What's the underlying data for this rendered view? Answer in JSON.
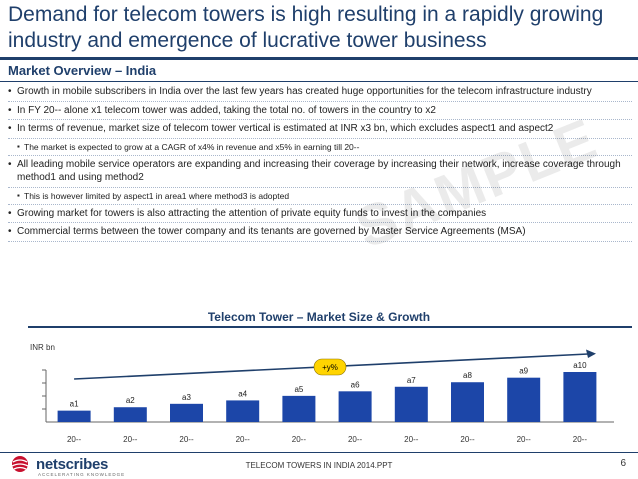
{
  "title": "Demand for telecom towers is high resulting in a rapidly growing industry and emergence of lucrative tower business",
  "section": {
    "heading": "Market Overview – India"
  },
  "bullets": [
    {
      "level": 1,
      "text": "Growth in mobile subscribers in India over the last few years has created huge opportunities for the telecom infrastructure industry"
    },
    {
      "level": 1,
      "text": "In FY 20-- alone x1 telecom tower was added, taking the total no. of towers in the country to x2"
    },
    {
      "level": 1,
      "text": "In terms of revenue, market size of telecom tower vertical is estimated at INR x3 bn, which excludes aspect1 and aspect2"
    },
    {
      "level": 2,
      "text": "The market is expected to grow at a CAGR of x4% in revenue and x5% in earning till 20--"
    },
    {
      "level": 1,
      "text": "All leading mobile service operators are expanding and increasing their coverage by increasing their network, increase coverage through method1 and using method2"
    },
    {
      "level": 2,
      "text": "This is however limited by aspect1 in area1 where method3 is adopted"
    },
    {
      "level": 1,
      "text": "Growing market for towers is also attracting the attention of private equity funds to invest in the companies"
    },
    {
      "level": 1,
      "text": "Commercial terms between the tower company and its tenants are governed by Master Service Agreements (MSA)"
    }
  ],
  "watermark": "SAMPLE",
  "chart_data": {
    "type": "bar",
    "title": "Telecom Tower – Market Size & Growth",
    "ylabel": "INR bn",
    "xlabel": "",
    "categories": [
      "20--",
      "20--",
      "20--",
      "20--",
      "20--",
      "20--",
      "20--",
      "20--",
      "20--",
      "20--"
    ],
    "data_labels": [
      "a1",
      "a2",
      "a3",
      "a4",
      "a5",
      "a6",
      "a7",
      "a8",
      "a9",
      "a10"
    ],
    "values": [
      10,
      13,
      16,
      19,
      23,
      27,
      31,
      35,
      39,
      44
    ],
    "ylim": [
      0,
      50
    ],
    "annotation": "+y%",
    "colors": {
      "bar": "#1c46a8",
      "accent": "#1f3f6b",
      "growth_badge": "#ffd400"
    }
  },
  "footer": {
    "logo": "netscribes",
    "logo_tagline": "ACCELERATING KNOWLEDGE",
    "text": "TELECOM TOWERS IN INDIA 2014.PPT",
    "page": "6"
  }
}
